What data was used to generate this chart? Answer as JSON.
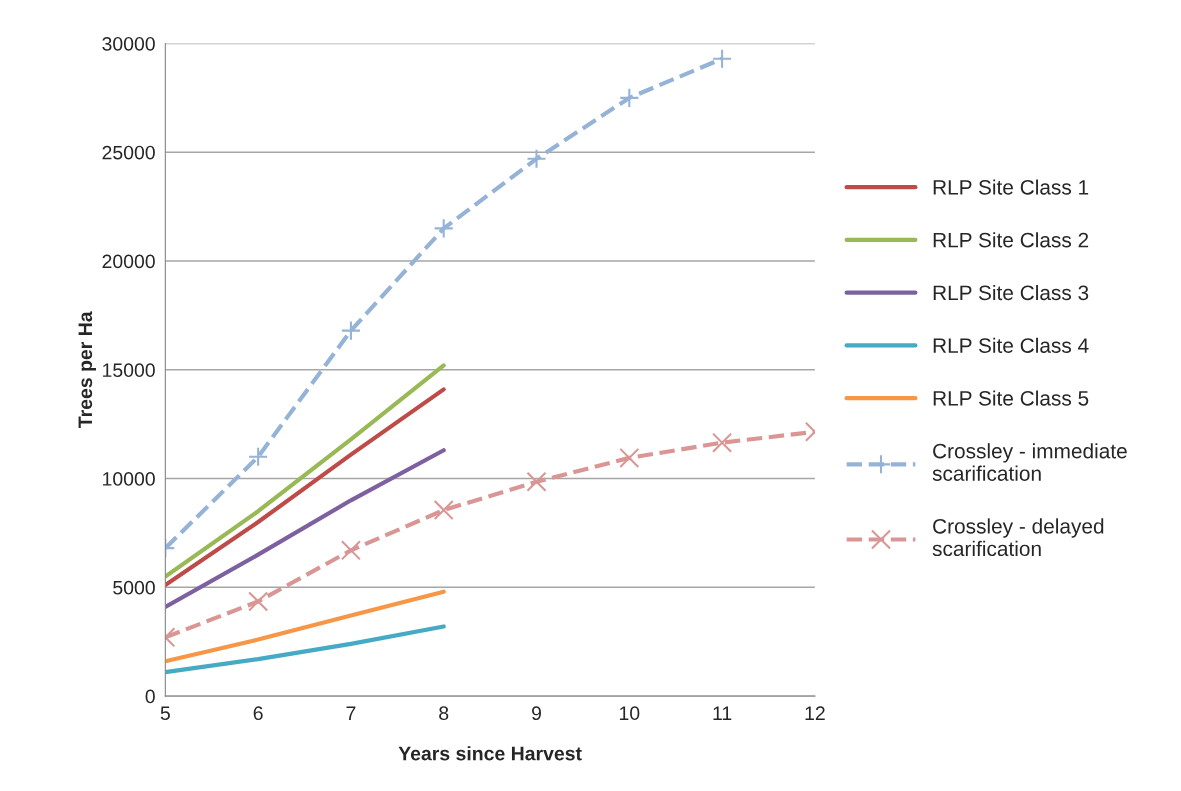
{
  "chart_data": {
    "type": "line",
    "xlabel": "Years since Harvest",
    "ylabel": "Trees per Ha",
    "xlim": [
      5,
      12
    ],
    "xticks": [
      5,
      6,
      7,
      8,
      9,
      10,
      11,
      12
    ],
    "ylim": [
      0,
      30000
    ],
    "yticks": [
      0,
      5000,
      10000,
      15000,
      20000,
      25000,
      30000
    ],
    "grid": "y",
    "legend": "right",
    "x": [
      5,
      6,
      7,
      8
    ],
    "series": [
      {
        "name": "RLP Site Class 1",
        "color": "#be4b48",
        "values": [
          5100,
          8000,
          11100,
          14100
        ],
        "line_style": "solid",
        "marker": "none"
      },
      {
        "name": "RLP Site Class 2",
        "color": "#98b954",
        "values": [
          5500,
          8500,
          11800,
          15200
        ],
        "line_style": "solid",
        "marker": "none"
      },
      {
        "name": "RLP Site Class 3",
        "color": "#7d60a0",
        "values": [
          4100,
          6500,
          9000,
          11300
        ],
        "line_style": "solid",
        "marker": "none"
      },
      {
        "name": "RLP Site Class 4",
        "color": "#46aac5",
        "values": [
          1100,
          1700,
          2400,
          3200
        ],
        "line_style": "solid",
        "marker": "none"
      },
      {
        "name": "RLP Site Class 5",
        "color": "#f79646",
        "values": [
          1600,
          2600,
          3700,
          4800
        ],
        "line_style": "solid",
        "marker": "none"
      },
      {
        "name": "Crossley - immediate\nscarification",
        "color": "#95b3d7",
        "x": [
          5,
          6,
          7,
          8,
          9,
          10,
          11
        ],
        "values": [
          6800,
          11000,
          16800,
          21500,
          24700,
          27500,
          29300
        ],
        "line_style": "dashed",
        "marker": "plus"
      },
      {
        "name": "Crossley - delayed\nscarification",
        "color": "#d99694",
        "x": [
          5,
          6,
          7,
          8,
          9,
          10,
          11,
          12
        ],
        "values": [
          2700,
          4350,
          6700,
          8550,
          9850,
          10950,
          11650,
          12150
        ],
        "line_style": "dashed",
        "marker": "cross"
      }
    ]
  }
}
